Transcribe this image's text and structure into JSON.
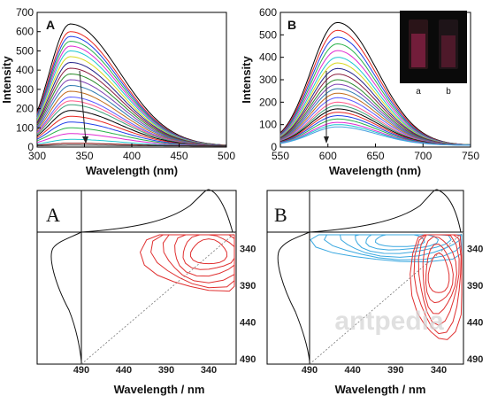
{
  "chart_data": [
    {
      "panel": "A",
      "type": "line",
      "xlabel": "Wavelength (nm)",
      "ylabel": "Intensity",
      "xlim": [
        300,
        500
      ],
      "ylim": [
        0,
        700
      ],
      "xticks": [
        "300",
        "350",
        "400",
        "450",
        "500"
      ],
      "yticks": [
        "0",
        "100",
        "200",
        "300",
        "400",
        "500",
        "600",
        "700"
      ],
      "peak_x": 335,
      "peak_values": [
        640,
        600,
        575,
        550,
        525,
        500,
        470,
        440,
        410,
        380,
        350,
        320,
        290,
        260,
        240,
        220,
        190,
        160,
        130,
        100,
        70,
        40,
        20,
        10
      ],
      "series_colors": [
        "#000000",
        "#e8261f",
        "#1f3fe8",
        "#29b24a",
        "#e02bd1",
        "#1cc6cf",
        "#d8d81f",
        "#24248a",
        "#8a1d3f",
        "#2a8a2a",
        "#7d3fb3",
        "#2c7ab0",
        "#c06a1a",
        "#5a5aff",
        "#ff5a8a",
        "#3aa07a",
        "#000000",
        "#e8261f",
        "#1f3fe8",
        "#29b24a",
        "#e02bd1",
        "#1cc6cf",
        "#800000",
        "#303030"
      ]
    },
    {
      "panel": "B",
      "type": "line",
      "xlabel": "Wavelength (nm)",
      "ylabel": "Intensity",
      "xlim": [
        550,
        750
      ],
      "ylim": [
        0,
        600
      ],
      "xticks": [
        "550",
        "600",
        "650",
        "700",
        "750"
      ],
      "yticks": [
        "0",
        "100",
        "200",
        "300",
        "400",
        "500",
        "600"
      ],
      "peak_x": 610,
      "peak_values": [
        555,
        520,
        490,
        460,
        430,
        400,
        375,
        350,
        325,
        300,
        280,
        260,
        240,
        220,
        200,
        185,
        170,
        155,
        140,
        125,
        110,
        100,
        90
      ],
      "series_colors": [
        "#000000",
        "#e8261f",
        "#1f3fe8",
        "#29b24a",
        "#e02bd1",
        "#1cc6cf",
        "#d8d81f",
        "#24248a",
        "#8a1d3f",
        "#2a8a2a",
        "#7d3fb3",
        "#2c7ab0",
        "#c06a1a",
        "#5a5aff",
        "#ff5a8a",
        "#3aa07a",
        "#000000",
        "#e8261f",
        "#1f3fe8",
        "#29b24a",
        "#e02bd1",
        "#1cc6cf",
        "#4aa0e0"
      ],
      "inset_labels": [
        "a",
        "b"
      ]
    },
    {
      "panel": "A",
      "type": "contour",
      "xlabel": "Wavelength / nm",
      "xticks": [
        "490",
        "440",
        "390",
        "340"
      ],
      "yticks": [
        "340",
        "390",
        "440",
        "490"
      ],
      "contours": [
        {
          "color": "#e03030",
          "center": [
            340,
            345
          ],
          "levels": 6
        }
      ]
    },
    {
      "panel": "B",
      "type": "contour",
      "xlabel": "Wavelength / nm",
      "xticks": [
        "490",
        "440",
        "390",
        "340"
      ],
      "yticks": [
        "340",
        "390",
        "440",
        "490"
      ],
      "contours": [
        {
          "color": "#3aa8e0",
          "center": [
            385,
            328
          ],
          "levels": 6
        },
        {
          "color": "#e03030",
          "center": [
            340,
            375
          ],
          "levels": 6
        }
      ]
    }
  ],
  "watermark": "antpedia"
}
